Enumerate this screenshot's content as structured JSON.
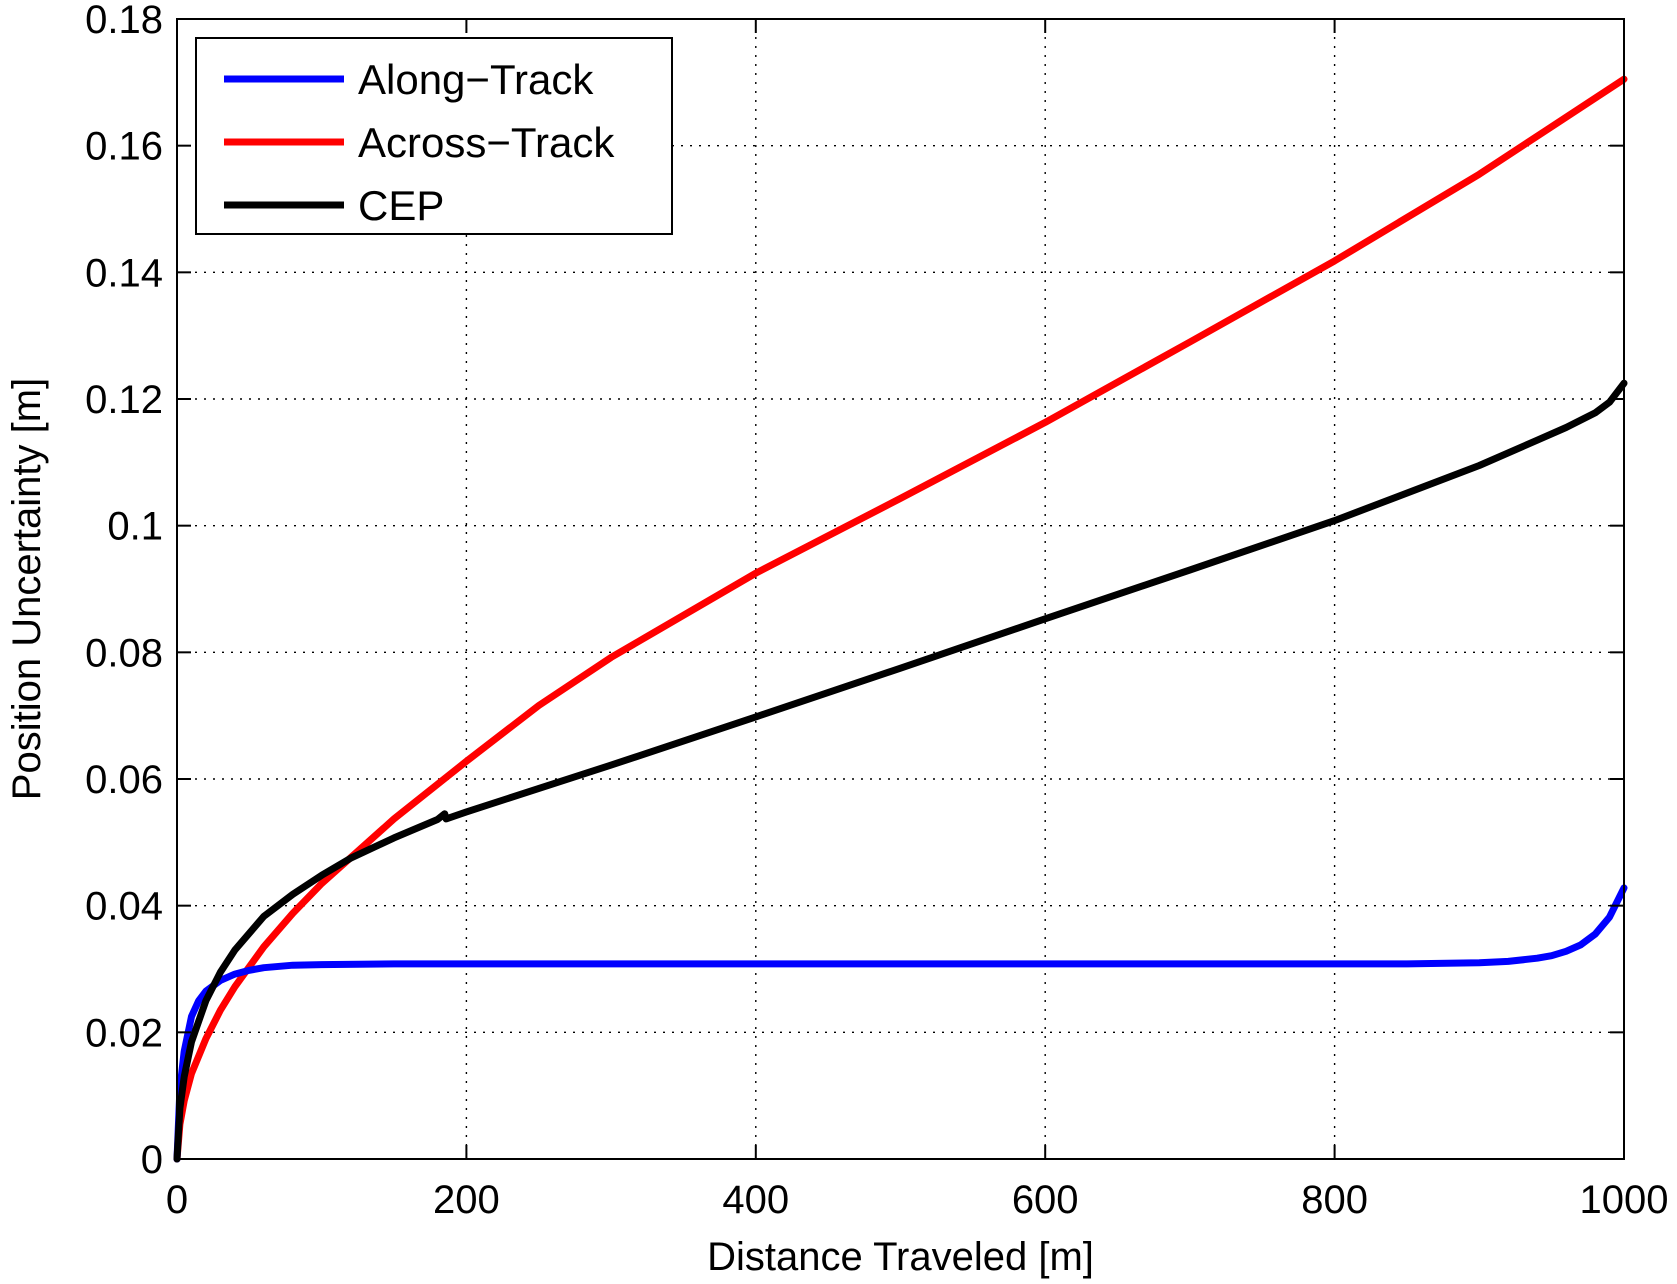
{
  "chart_data": {
    "type": "line",
    "xlabel": "Distance Traveled [m]",
    "ylabel": "Position Uncertainty [m]",
    "xlim": [
      0,
      1000
    ],
    "ylim": [
      0,
      0.18
    ],
    "xticks": [
      0,
      200,
      400,
      600,
      800,
      1000
    ],
    "xtick_labels": [
      "0",
      "200",
      "400",
      "600",
      "800",
      "1000"
    ],
    "yticks": [
      0,
      0.02,
      0.04,
      0.06,
      0.08,
      0.1,
      0.12,
      0.14,
      0.16,
      0.18
    ],
    "ytick_labels": [
      "0",
      "0.02",
      "0.04",
      "0.06",
      "0.08",
      "0.1",
      "0.12",
      "0.14",
      "0.16",
      "0.18"
    ],
    "grid": true,
    "legend_position": "top-left",
    "series": [
      {
        "name": "Along−Track",
        "color": "#0000ff",
        "x": [
          0,
          2,
          5,
          10,
          15,
          20,
          30,
          40,
          50,
          60,
          80,
          100,
          150,
          200,
          300,
          400,
          500,
          600,
          700,
          800,
          850,
          900,
          920,
          940,
          950,
          960,
          970,
          980,
          990,
          1000
        ],
        "y": [
          0,
          0.011,
          0.017,
          0.0225,
          0.025,
          0.0265,
          0.0282,
          0.0292,
          0.0298,
          0.0302,
          0.0306,
          0.0307,
          0.0308,
          0.0308,
          0.0308,
          0.0308,
          0.0308,
          0.0308,
          0.0308,
          0.0308,
          0.0308,
          0.031,
          0.0312,
          0.0317,
          0.0321,
          0.0328,
          0.0338,
          0.0355,
          0.0382,
          0.0428
        ]
      },
      {
        "name": "Across−Track",
        "color": "#ff0000",
        "x": [
          0,
          2,
          5,
          10,
          20,
          30,
          40,
          60,
          80,
          100,
          150,
          200,
          250,
          300,
          400,
          500,
          600,
          700,
          800,
          900,
          1000
        ],
        "y": [
          0,
          0.0055,
          0.0092,
          0.0135,
          0.019,
          0.0235,
          0.0272,
          0.0335,
          0.0388,
          0.0435,
          0.0537,
          0.0628,
          0.0716,
          0.0792,
          0.0925,
          0.1043,
          0.1163,
          0.129,
          0.1418,
          0.1555,
          0.1705
        ]
      },
      {
        "name": "CEP",
        "color": "#000000",
        "x": [
          0,
          2,
          5,
          10,
          20,
          30,
          40,
          60,
          80,
          100,
          120,
          150,
          180,
          185,
          186,
          200,
          300,
          400,
          500,
          600,
          700,
          800,
          900,
          940,
          960,
          980,
          990,
          1000
        ],
        "y": [
          0,
          0.008,
          0.013,
          0.0185,
          0.025,
          0.0295,
          0.033,
          0.0383,
          0.0418,
          0.0448,
          0.0475,
          0.0507,
          0.0536,
          0.0545,
          0.0537,
          0.0548,
          0.0622,
          0.0698,
          0.0775,
          0.0853,
          0.093,
          0.1008,
          0.1095,
          0.1135,
          0.1155,
          0.1178,
          0.1195,
          0.1225
        ]
      }
    ]
  }
}
